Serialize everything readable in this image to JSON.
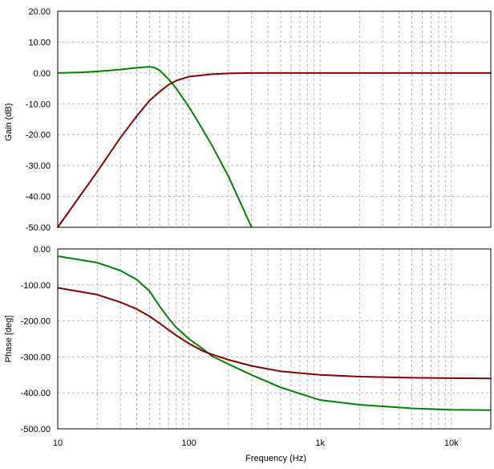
{
  "chart_data": [
    {
      "type": "line",
      "panel": "gain",
      "ylabel": "Gain (dB)",
      "xlabel": "",
      "x_scale": "log",
      "xlim": [
        10,
        20000
      ],
      "ylim": [
        -50,
        20
      ],
      "y_ticks": [
        20,
        10,
        0,
        -10,
        -20,
        -30,
        -40,
        -50
      ],
      "y_tick_labels": [
        "20.00",
        "10.00",
        "0.00",
        "-10.00",
        "-20.00",
        "-30.00",
        "-40.00",
        "-50.00"
      ],
      "x_ticks": [
        10,
        100,
        1000,
        10000
      ],
      "x_tick_labels": [
        "",
        "",
        "",
        ""
      ],
      "grid": true,
      "series": [
        {
          "color": "#008000",
          "x": [
            10,
            15,
            20,
            30,
            40,
            50,
            55,
            60,
            70,
            80,
            100,
            120,
            150,
            200,
            250,
            300
          ],
          "y": [
            0,
            0.2,
            0.5,
            1.1,
            1.7,
            2.0,
            1.7,
            0.8,
            -2.0,
            -5.0,
            -11.0,
            -16.5,
            -23.5,
            -33.5,
            -42.5,
            -50
          ]
        },
        {
          "color": "#800000",
          "x": [
            10,
            20,
            30,
            40,
            50,
            60,
            70,
            80,
            100,
            150,
            200,
            300,
            1000,
            20000
          ],
          "y": [
            -50,
            -32,
            -21,
            -14,
            -9,
            -6,
            -3.8,
            -2.5,
            -1.2,
            -0.4,
            -0.15,
            0,
            0,
            0
          ]
        }
      ]
    },
    {
      "type": "line",
      "panel": "phase",
      "ylabel": "Phase [deg]",
      "xlabel": "Frequency (Hz)",
      "x_scale": "log",
      "xlim": [
        10,
        20000
      ],
      "ylim": [
        -500,
        0
      ],
      "y_ticks": [
        0,
        -100,
        -200,
        -300,
        -400,
        -500
      ],
      "y_tick_labels": [
        "0.00",
        "-100.00",
        "-200.00",
        "-300.00",
        "-400.00",
        "-500.00"
      ],
      "x_ticks": [
        10,
        100,
        1000,
        10000
      ],
      "x_tick_labels": [
        "10",
        "100",
        "1k",
        "10k"
      ],
      "grid": true,
      "series": [
        {
          "color": "#008000",
          "x": [
            10,
            20,
            30,
            40,
            50,
            60,
            70,
            80,
            100,
            130,
            150,
            200,
            300,
            500,
            1000,
            2000,
            5000,
            10000,
            20000
          ],
          "y": [
            -20,
            -38,
            -60,
            -85,
            -117,
            -160,
            -193,
            -218,
            -250,
            -280,
            -298,
            -320,
            -350,
            -385,
            -420,
            -433,
            -443,
            -447,
            -448
          ]
        },
        {
          "color": "#800000",
          "x": [
            10,
            20,
            30,
            40,
            50,
            60,
            70,
            80,
            100,
            130,
            150,
            200,
            300,
            500,
            1000,
            2000,
            5000,
            10000,
            20000
          ],
          "y": [
            -108,
            -127,
            -148,
            -167,
            -187,
            -207,
            -225,
            -240,
            -263,
            -285,
            -293,
            -308,
            -325,
            -340,
            -350,
            -355,
            -358,
            -359,
            -360
          ]
        }
      ]
    }
  ]
}
